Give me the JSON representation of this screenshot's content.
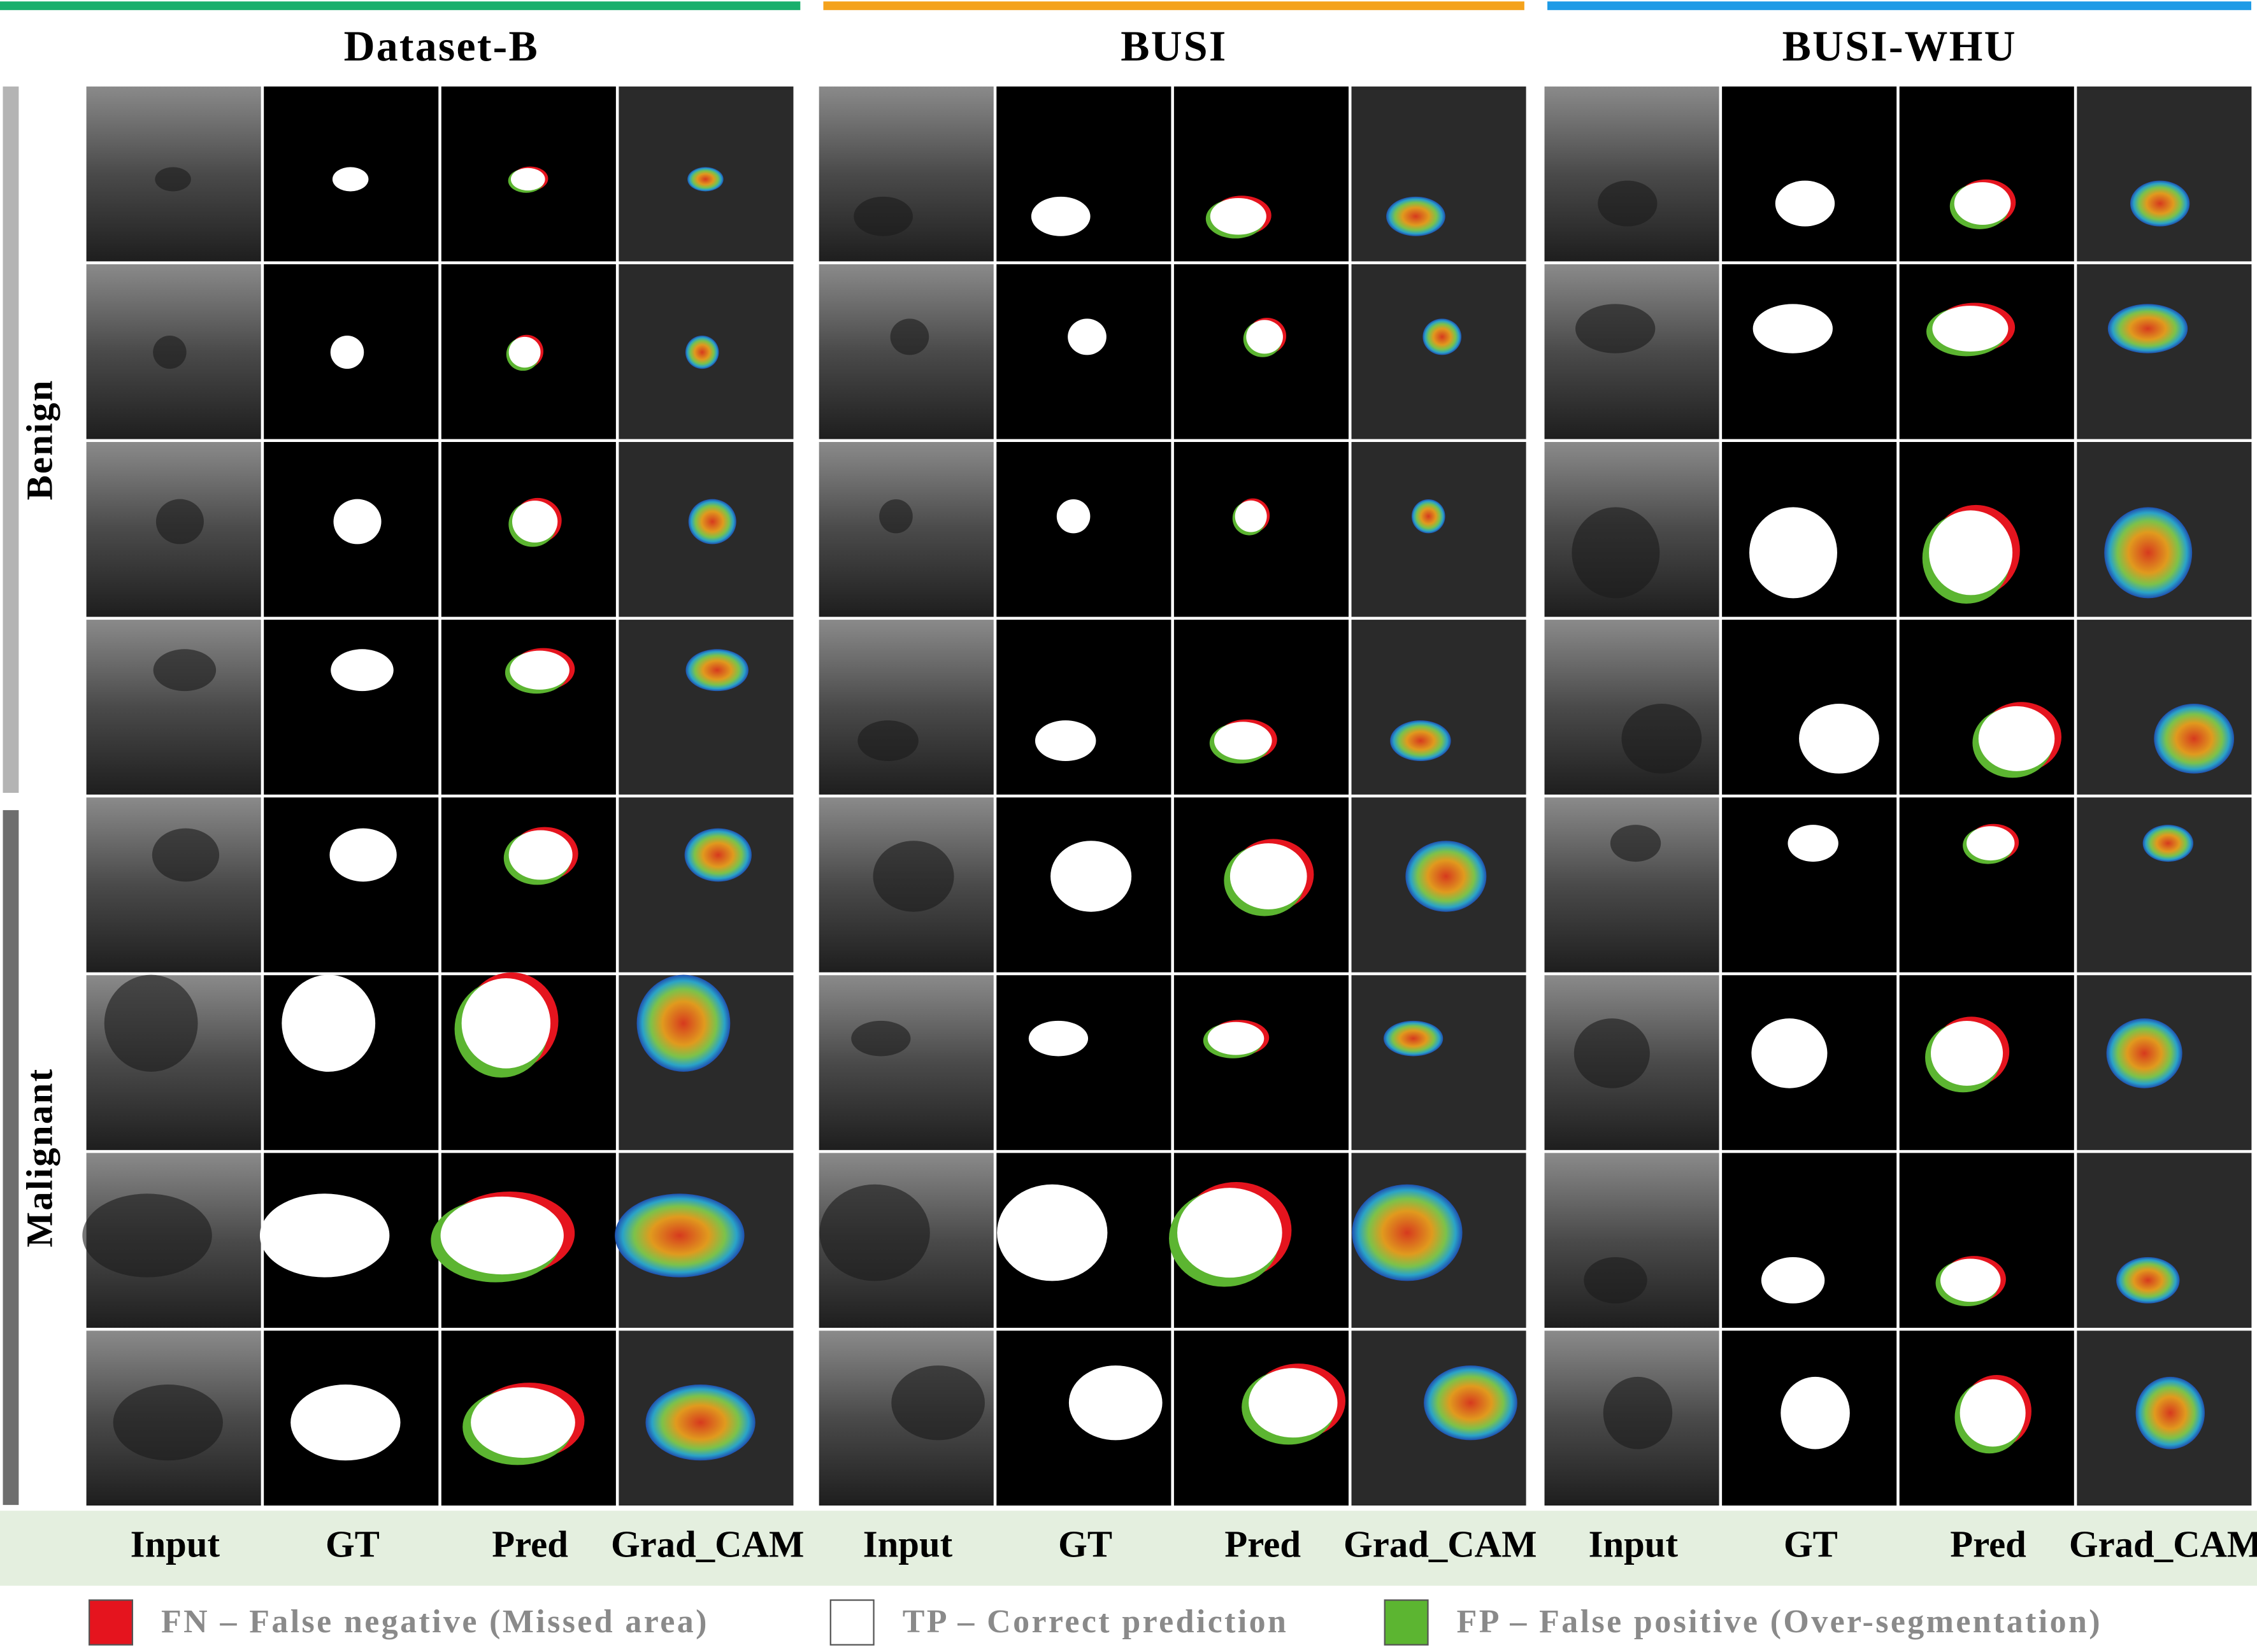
{
  "groups": [
    {
      "title": "Dataset-B",
      "color": "#1aaf6c"
    },
    {
      "title": "BUSI",
      "color": "#f4a21c"
    },
    {
      "title": "BUSI-WHU",
      "color": "#1e9be6"
    }
  ],
  "row_groups": [
    {
      "label": "Benign",
      "color": "#b4b4b4"
    },
    {
      "label": "Malignant",
      "color": "#6e6e6e"
    }
  ],
  "columns": [
    "Input",
    "GT",
    "Pred",
    "Grad_CAM"
  ],
  "legend": [
    {
      "text": "FN – False negative (Missed area)",
      "color": "#e5141e"
    },
    {
      "text": "TP – Correct prediction",
      "color": "#ffffff"
    },
    {
      "text": "FP – False positive (Over-segmentation)",
      "color": "#5cb531"
    }
  ]
}
